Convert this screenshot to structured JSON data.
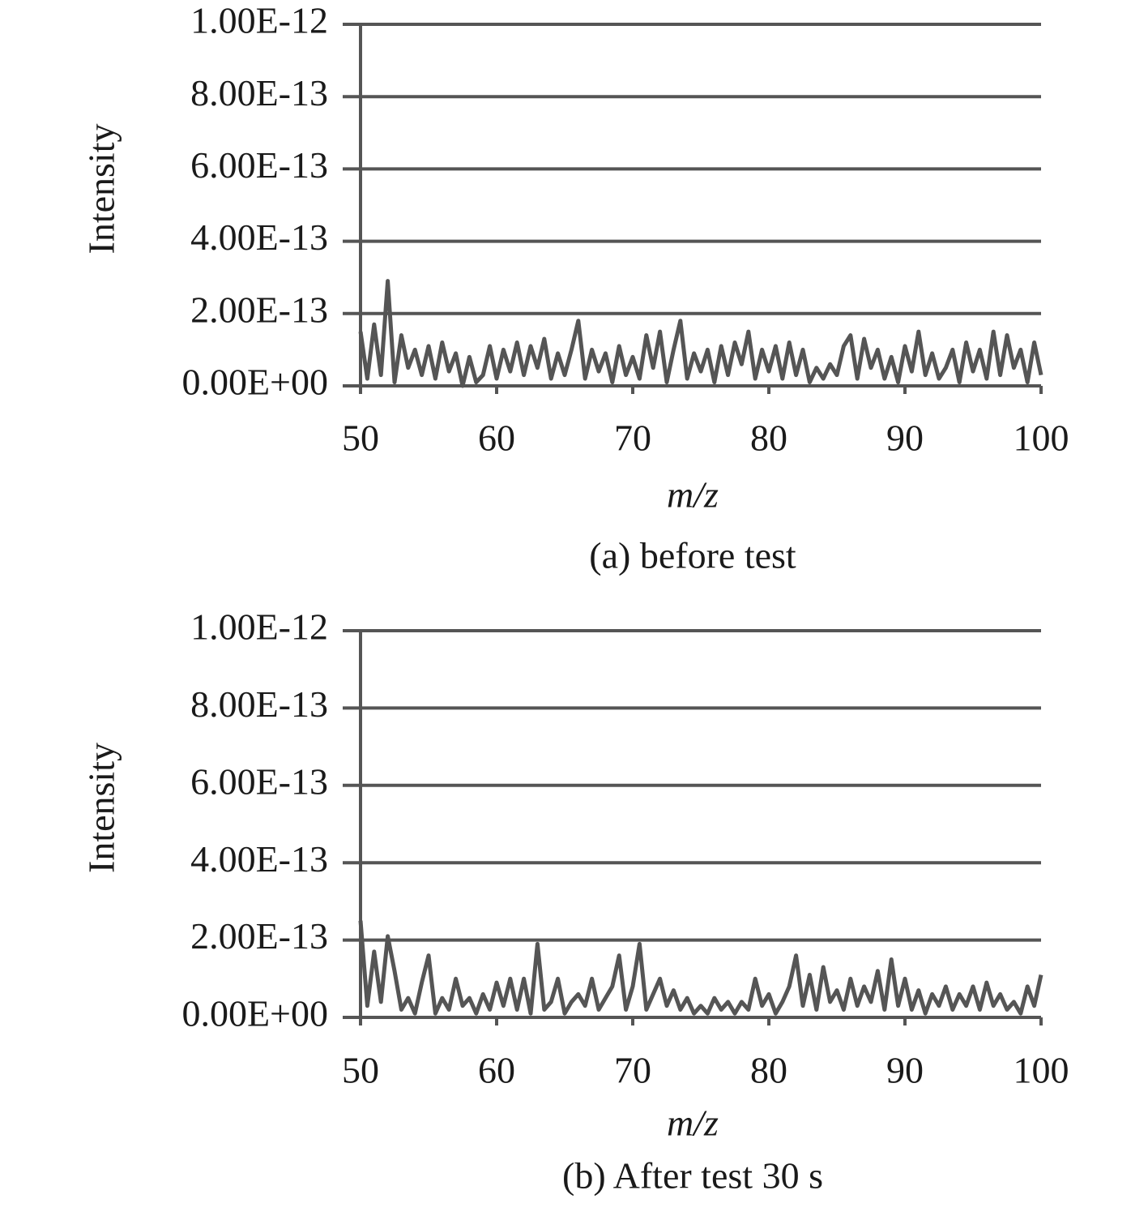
{
  "chart_data": [
    {
      "type": "line",
      "title": "(a) before test",
      "x_label": "m/z",
      "y_label": "Intensity",
      "grid": true,
      "xlim": [
        50,
        100
      ],
      "xticks": [
        50,
        60,
        70,
        80,
        90,
        100
      ],
      "ylim": [
        0,
        1e-12
      ],
      "yticks": [
        {
          "value": 0,
          "label": "0.00E+00"
        },
        {
          "value": 2e-13,
          "label": "2.00E-13"
        },
        {
          "value": 4e-13,
          "label": "4.00E-13"
        },
        {
          "value": 6e-13,
          "label": "6.00E-13"
        },
        {
          "value": 8e-13,
          "label": "8.00E-13"
        },
        {
          "value": 1e-12,
          "label": "1.00E-12"
        }
      ],
      "series": [
        {
          "color": "#555555",
          "x": [
            50,
            50.5,
            51,
            51.5,
            52,
            52.5,
            53,
            53.5,
            54,
            54.5,
            55,
            55.5,
            56,
            56.5,
            57,
            57.5,
            58,
            58.5,
            59,
            59.5,
            60,
            60.5,
            61,
            61.5,
            62,
            62.5,
            63,
            63.5,
            64,
            64.5,
            65,
            65.5,
            66,
            66.5,
            67,
            67.5,
            68,
            68.5,
            69,
            69.5,
            70,
            70.5,
            71,
            71.5,
            72,
            72.5,
            73,
            73.5,
            74,
            74.5,
            75,
            75.5,
            76,
            76.5,
            77,
            77.5,
            78,
            78.5,
            79,
            79.5,
            80,
            80.5,
            81,
            81.5,
            82,
            82.5,
            83,
            83.5,
            84,
            84.5,
            85,
            85.5,
            86,
            86.5,
            87,
            87.5,
            88,
            88.5,
            89,
            89.5,
            90,
            90.5,
            91,
            91.5,
            92,
            92.5,
            93,
            93.5,
            94,
            94.5,
            95,
            95.5,
            96,
            96.5,
            97,
            97.5,
            98,
            98.5,
            99,
            99.5,
            100
          ],
          "values": [
            1.5e-13,
            2e-14,
            1.7e-13,
            3e-14,
            2.9e-13,
            1e-14,
            1.4e-13,
            5e-14,
            1e-13,
            3e-14,
            1.1e-13,
            2e-14,
            1.2e-13,
            4e-14,
            9e-14,
            0,
            8e-14,
            1e-14,
            3e-14,
            1.1e-13,
            2e-14,
            1e-13,
            4e-14,
            1.2e-13,
            3e-14,
            1.1e-13,
            5e-14,
            1.3e-13,
            2e-14,
            9e-14,
            3e-14,
            1e-13,
            1.8e-13,
            2e-14,
            1e-13,
            4e-14,
            9e-14,
            1e-14,
            1.1e-13,
            3e-14,
            8e-14,
            2e-14,
            1.4e-13,
            5e-14,
            1.5e-13,
            1e-14,
            1e-13,
            1.8e-13,
            2e-14,
            9e-14,
            4e-14,
            1e-13,
            1e-14,
            1.1e-13,
            3e-14,
            1.2e-13,
            6e-14,
            1.5e-13,
            2e-14,
            1e-13,
            4e-14,
            1.1e-13,
            2e-14,
            1.2e-13,
            3e-14,
            1e-13,
            1e-14,
            5e-14,
            2e-14,
            6e-14,
            3e-14,
            1.1e-13,
            1.4e-13,
            2e-14,
            1.3e-13,
            5e-14,
            1e-13,
            2e-14,
            8e-14,
            1e-14,
            1.1e-13,
            4e-14,
            1.5e-13,
            3e-14,
            9e-14,
            2e-14,
            5e-14,
            1e-13,
            1e-14,
            1.2e-13,
            4e-14,
            1e-13,
            2e-14,
            1.5e-13,
            3e-14,
            1.4e-13,
            5e-14,
            1e-13,
            1e-14,
            1.2e-13,
            3e-14
          ]
        }
      ]
    },
    {
      "type": "line",
      "title": "(b) After test 30 s",
      "x_label": "m/z",
      "y_label": "Intensity",
      "grid": true,
      "xlim": [
        50,
        100
      ],
      "xticks": [
        50,
        60,
        70,
        80,
        90,
        100
      ],
      "ylim": [
        0,
        1e-12
      ],
      "yticks": [
        {
          "value": 0,
          "label": "0.00E+00"
        },
        {
          "value": 2e-13,
          "label": "2.00E-13"
        },
        {
          "value": 4e-13,
          "label": "4.00E-13"
        },
        {
          "value": 6e-13,
          "label": "6.00E-13"
        },
        {
          "value": 8e-13,
          "label": "8.00E-13"
        },
        {
          "value": 1e-12,
          "label": "1.00E-12"
        }
      ],
      "series": [
        {
          "color": "#555555",
          "x": [
            50,
            50.5,
            51,
            51.5,
            52,
            52.5,
            53,
            53.5,
            54,
            54.5,
            55,
            55.5,
            56,
            56.5,
            57,
            57.5,
            58,
            58.5,
            59,
            59.5,
            60,
            60.5,
            61,
            61.5,
            62,
            62.5,
            63,
            63.5,
            64,
            64.5,
            65,
            65.5,
            66,
            66.5,
            67,
            67.5,
            68,
            68.5,
            69,
            69.5,
            70,
            70.5,
            71,
            71.5,
            72,
            72.5,
            73,
            73.5,
            74,
            74.5,
            75,
            75.5,
            76,
            76.5,
            77,
            77.5,
            78,
            78.5,
            79,
            79.5,
            80,
            80.5,
            81,
            81.5,
            82,
            82.5,
            83,
            83.5,
            84,
            84.5,
            85,
            85.5,
            86,
            86.5,
            87,
            87.5,
            88,
            88.5,
            89,
            89.5,
            90,
            90.5,
            91,
            91.5,
            92,
            92.5,
            93,
            93.5,
            94,
            94.5,
            95,
            95.5,
            96,
            96.5,
            97,
            97.5,
            98,
            98.5,
            99,
            99.5,
            100
          ],
          "values": [
            2.5e-13,
            3e-14,
            1.7e-13,
            4e-14,
            2.1e-13,
            1.2e-13,
            2e-14,
            5e-14,
            1e-14,
            9e-14,
            1.6e-13,
            1e-14,
            5e-14,
            2e-14,
            1e-13,
            3e-14,
            5e-14,
            1e-14,
            6e-14,
            2e-14,
            9e-14,
            3e-14,
            1e-13,
            2e-14,
            1e-13,
            1e-14,
            1.9e-13,
            2e-14,
            4e-14,
            1e-13,
            1e-14,
            4e-14,
            6e-14,
            3e-14,
            1e-13,
            2e-14,
            5e-14,
            8e-14,
            1.6e-13,
            2e-14,
            8e-14,
            1.9e-13,
            2e-14,
            6e-14,
            1e-13,
            3e-14,
            7e-14,
            2e-14,
            5e-14,
            1e-14,
            3e-14,
            1e-14,
            5e-14,
            2e-14,
            4e-14,
            1e-14,
            4e-14,
            2e-14,
            1e-13,
            3e-14,
            6e-14,
            1e-14,
            4e-14,
            8e-14,
            1.6e-13,
            3e-14,
            1.1e-13,
            2e-14,
            1.3e-13,
            4e-14,
            7e-14,
            2e-14,
            1e-13,
            3e-14,
            8e-14,
            4e-14,
            1.2e-13,
            2e-14,
            1.5e-13,
            3e-14,
            1e-13,
            2e-14,
            7e-14,
            1e-14,
            6e-14,
            3e-14,
            8e-14,
            2e-14,
            6e-14,
            3e-14,
            8e-14,
            2e-14,
            9e-14,
            3e-14,
            6e-14,
            2e-14,
            4e-14,
            1e-14,
            8e-14,
            3e-14,
            1.1e-13
          ]
        }
      ]
    }
  ]
}
